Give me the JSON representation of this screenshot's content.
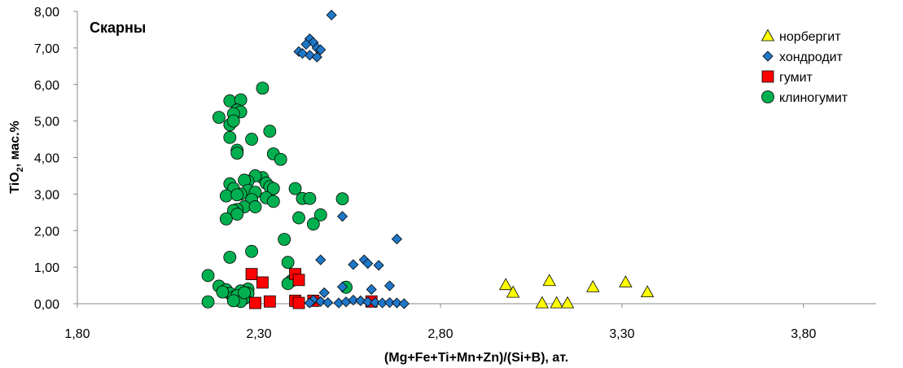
{
  "chart_data": {
    "type": "scatter",
    "title": "Скарны",
    "xlabel": "(Mg+Fe+Ti+Mn+Zn)/(Si+B),  ат.",
    "ylabel_main": "TiO",
    "ylabel_sub": "2",
    "ylabel_rest": ", мас.%",
    "xlim": [
      1.8,
      4.0
    ],
    "ylim": [
      0,
      8
    ],
    "x_ticks": [
      1.8,
      2.3,
      2.8,
      3.3,
      3.8
    ],
    "x_tick_labels": [
      "1,80",
      "2,30",
      "2,80",
      "3,30",
      "3,80"
    ],
    "y_ticks": [
      0,
      1,
      2,
      3,
      4,
      5,
      6,
      7,
      8
    ],
    "y_tick_labels": [
      "0,00",
      "1,00",
      "2,00",
      "3,00",
      "4,00",
      "5,00",
      "6,00",
      "7,00",
      "8,00"
    ],
    "grid": false,
    "legend_position": "top-right",
    "series": [
      {
        "name": "норбергит",
        "marker": "triangle",
        "color": "#FFFF00",
        "points": [
          [
            2.98,
            0.52
          ],
          [
            3.0,
            0.31
          ],
          [
            3.08,
            0.02
          ],
          [
            3.1,
            0.63
          ],
          [
            3.12,
            0.02
          ],
          [
            3.15,
            0.02
          ],
          [
            3.22,
            0.46
          ],
          [
            3.31,
            0.59
          ],
          [
            3.37,
            0.32
          ]
        ]
      },
      {
        "name": "хондродит",
        "marker": "diamond",
        "color": "#1F77C8",
        "points": [
          [
            2.5,
            7.9
          ],
          [
            2.44,
            7.25
          ],
          [
            2.45,
            7.15
          ],
          [
            2.43,
            7.1
          ],
          [
            2.46,
            7.0
          ],
          [
            2.41,
            6.9
          ],
          [
            2.47,
            6.95
          ],
          [
            2.44,
            6.8
          ],
          [
            2.46,
            6.75
          ],
          [
            2.42,
            6.85
          ],
          [
            2.53,
            2.39
          ],
          [
            2.68,
            1.77
          ],
          [
            2.47,
            1.2
          ],
          [
            2.59,
            1.2
          ],
          [
            2.56,
            1.07
          ],
          [
            2.6,
            1.1
          ],
          [
            2.63,
            1.05
          ],
          [
            2.66,
            0.49
          ],
          [
            2.53,
            0.46
          ],
          [
            2.61,
            0.39
          ],
          [
            2.48,
            0.3
          ],
          [
            2.45,
            0.1
          ],
          [
            2.47,
            0.06
          ],
          [
            2.49,
            0.03
          ],
          [
            2.52,
            0.02
          ],
          [
            2.54,
            0.05
          ],
          [
            2.56,
            0.1
          ],
          [
            2.58,
            0.08
          ],
          [
            2.6,
            0.05
          ],
          [
            2.62,
            0.03
          ],
          [
            2.64,
            0.02
          ],
          [
            2.66,
            0.03
          ],
          [
            2.68,
            0.02
          ],
          [
            2.7,
            0.0
          ],
          [
            2.44,
            0.02
          ]
        ]
      },
      {
        "name": "гумит",
        "marker": "square",
        "color": "#FF0000",
        "points": [
          [
            2.28,
            0.81
          ],
          [
            2.4,
            0.81
          ],
          [
            2.31,
            0.58
          ],
          [
            2.41,
            0.65
          ],
          [
            2.45,
            0.08
          ],
          [
            2.33,
            0.06
          ],
          [
            2.4,
            0.08
          ],
          [
            2.29,
            0.02
          ],
          [
            2.41,
            0.02
          ],
          [
            2.61,
            0.06
          ]
        ]
      },
      {
        "name": "клиногумит",
        "marker": "circle",
        "color": "#00B050",
        "points": [
          [
            2.31,
            5.9
          ],
          [
            2.22,
            5.55
          ],
          [
            2.25,
            5.58
          ],
          [
            2.24,
            5.3
          ],
          [
            2.25,
            5.25
          ],
          [
            2.23,
            5.2
          ],
          [
            2.19,
            5.1
          ],
          [
            2.22,
            4.9
          ],
          [
            2.23,
            5.0
          ],
          [
            2.33,
            4.72
          ],
          [
            2.22,
            4.55
          ],
          [
            2.28,
            4.5
          ],
          [
            2.24,
            4.2
          ],
          [
            2.24,
            4.12
          ],
          [
            2.34,
            4.1
          ],
          [
            2.36,
            3.95
          ],
          [
            2.31,
            3.45
          ],
          [
            2.29,
            3.5
          ],
          [
            2.32,
            3.3
          ],
          [
            2.27,
            3.35
          ],
          [
            2.26,
            3.38
          ],
          [
            2.22,
            3.28
          ],
          [
            2.23,
            3.15
          ],
          [
            2.27,
            3.1
          ],
          [
            2.33,
            3.2
          ],
          [
            2.34,
            3.15
          ],
          [
            2.29,
            3.05
          ],
          [
            2.25,
            3.0
          ],
          [
            2.21,
            2.95
          ],
          [
            2.24,
            2.98
          ],
          [
            2.32,
            2.9
          ],
          [
            2.34,
            2.8
          ],
          [
            2.28,
            2.85
          ],
          [
            2.4,
            3.15
          ],
          [
            2.42,
            2.88
          ],
          [
            2.44,
            2.88
          ],
          [
            2.53,
            2.87
          ],
          [
            2.26,
            2.65
          ],
          [
            2.29,
            2.65
          ],
          [
            2.24,
            2.58
          ],
          [
            2.23,
            2.55
          ],
          [
            2.24,
            2.45
          ],
          [
            2.21,
            2.32
          ],
          [
            2.41,
            2.35
          ],
          [
            2.47,
            2.43
          ],
          [
            2.45,
            2.18
          ],
          [
            2.37,
            1.76
          ],
          [
            2.28,
            1.43
          ],
          [
            2.22,
            1.27
          ],
          [
            2.38,
            1.13
          ],
          [
            2.16,
            0.77
          ],
          [
            2.39,
            0.63
          ],
          [
            2.38,
            0.55
          ],
          [
            2.19,
            0.48
          ],
          [
            2.54,
            0.45
          ],
          [
            2.21,
            0.38
          ],
          [
            2.27,
            0.4
          ],
          [
            2.25,
            0.35
          ],
          [
            2.22,
            0.28
          ],
          [
            2.23,
            0.18
          ],
          [
            2.27,
            0.28
          ],
          [
            2.24,
            0.22
          ],
          [
            2.26,
            0.15
          ],
          [
            2.25,
            0.06
          ],
          [
            2.23,
            0.08
          ],
          [
            2.16,
            0.05
          ],
          [
            2.2,
            0.32
          ],
          [
            2.26,
            0.3
          ]
        ]
      }
    ]
  }
}
